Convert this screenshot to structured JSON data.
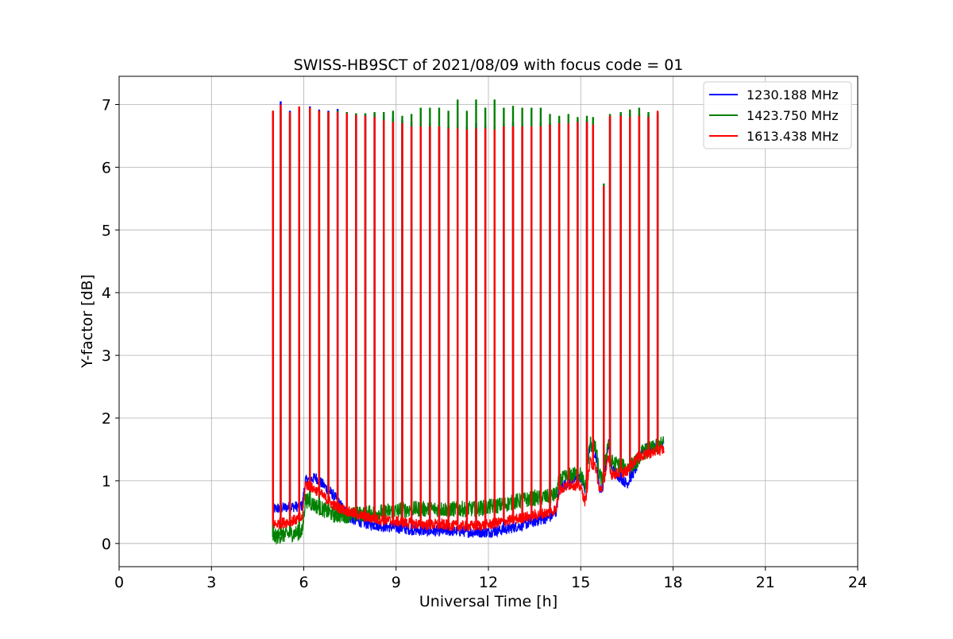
{
  "chart_data": {
    "type": "line",
    "title": "SWISS-HB9SCT of 2021/08/09 with focus code = 01",
    "xlabel": "Universal Time [h]",
    "ylabel": "Y-factor [dB]",
    "xlim": [
      0,
      24
    ],
    "ylim": [
      -0.37,
      7.45
    ],
    "xticks": [
      0,
      3,
      6,
      9,
      12,
      15,
      18,
      21,
      24
    ],
    "xtick_labels": [
      "0",
      "3",
      "6",
      "9",
      "12",
      "15",
      "18",
      "21",
      "24"
    ],
    "yticks": [
      0,
      1,
      2,
      3,
      4,
      5,
      6,
      7
    ],
    "ytick_labels": [
      "0",
      "1",
      "2",
      "3",
      "4",
      "5",
      "6",
      "7"
    ],
    "grid": true,
    "legend_position": "top-right",
    "series": [
      {
        "name": "1230.188 MHz",
        "color": "#0000ff",
        "baseline": [
          [
            5.0,
            0.55
          ],
          [
            5.5,
            0.58
          ],
          [
            5.95,
            0.6
          ],
          [
            6.05,
            1.0
          ],
          [
            6.4,
            1.05
          ],
          [
            7.0,
            0.75
          ],
          [
            7.5,
            0.4
          ],
          [
            8.0,
            0.32
          ],
          [
            8.5,
            0.28
          ],
          [
            9.0,
            0.25
          ],
          [
            9.5,
            0.22
          ],
          [
            10.0,
            0.2
          ],
          [
            10.5,
            0.2
          ],
          [
            11.0,
            0.2
          ],
          [
            11.5,
            0.18
          ],
          [
            12.0,
            0.18
          ],
          [
            12.5,
            0.22
          ],
          [
            13.0,
            0.28
          ],
          [
            13.5,
            0.35
          ],
          [
            14.0,
            0.42
          ],
          [
            14.2,
            0.5
          ],
          [
            14.3,
            0.9
          ],
          [
            14.7,
            1.0
          ],
          [
            15.0,
            1.05
          ],
          [
            15.15,
            0.85
          ],
          [
            15.3,
            1.6
          ],
          [
            15.5,
            1.4
          ],
          [
            15.6,
            0.9
          ],
          [
            15.7,
            0.85
          ],
          [
            15.9,
            1.6
          ],
          [
            16.0,
            1.2
          ],
          [
            16.5,
            0.95
          ],
          [
            16.8,
            1.2
          ],
          [
            17.0,
            1.5
          ],
          [
            17.5,
            1.55
          ],
          [
            17.7,
            1.6
          ]
        ],
        "spikes": [
          [
            5.0,
            6.9
          ],
          [
            5.25,
            7.05
          ],
          [
            5.55,
            6.9
          ],
          [
            5.85,
            6.95
          ],
          [
            6.2,
            6.97
          ],
          [
            6.5,
            6.92
          ],
          [
            6.8,
            6.9
          ],
          [
            7.1,
            6.93
          ],
          [
            7.4,
            6.88
          ],
          [
            7.7,
            6.85
          ],
          [
            8.0,
            6.85
          ],
          [
            8.3,
            6.85
          ],
          [
            8.6,
            6.82
          ],
          [
            8.9,
            6.8
          ],
          [
            9.2,
            6.75
          ],
          [
            9.5,
            6.72
          ],
          [
            9.8,
            6.68
          ],
          [
            10.1,
            6.7
          ],
          [
            10.4,
            6.65
          ],
          [
            10.7,
            6.65
          ],
          [
            11.0,
            6.68
          ],
          [
            11.3,
            6.65
          ],
          [
            11.6,
            6.7
          ],
          [
            11.9,
            6.68
          ],
          [
            12.2,
            6.65
          ],
          [
            12.5,
            6.7
          ],
          [
            12.8,
            6.72
          ],
          [
            13.1,
            6.68
          ],
          [
            13.4,
            6.65
          ],
          [
            13.7,
            6.72
          ],
          [
            14.0,
            6.7
          ],
          [
            14.3,
            6.75
          ],
          [
            14.6,
            6.72
          ],
          [
            14.9,
            6.75
          ],
          [
            15.2,
            6.75
          ],
          [
            15.4,
            6.7
          ],
          [
            15.75,
            5.72
          ],
          [
            15.95,
            6.8
          ],
          [
            16.3,
            6.85
          ],
          [
            16.6,
            6.85
          ],
          [
            16.9,
            6.85
          ],
          [
            17.2,
            6.82
          ],
          [
            17.5,
            6.85
          ]
        ]
      },
      {
        "name": "1423.750 MHz",
        "color": "#008000",
        "baseline": [
          [
            5.0,
            0.1
          ],
          [
            5.5,
            0.15
          ],
          [
            5.95,
            0.18
          ],
          [
            6.05,
            0.7
          ],
          [
            6.4,
            0.6
          ],
          [
            7.0,
            0.45
          ],
          [
            7.5,
            0.45
          ],
          [
            8.0,
            0.48
          ],
          [
            8.5,
            0.5
          ],
          [
            9.0,
            0.52
          ],
          [
            9.5,
            0.55
          ],
          [
            10.0,
            0.55
          ],
          [
            10.5,
            0.55
          ],
          [
            11.0,
            0.55
          ],
          [
            11.5,
            0.55
          ],
          [
            12.0,
            0.58
          ],
          [
            12.5,
            0.62
          ],
          [
            13.0,
            0.68
          ],
          [
            13.5,
            0.72
          ],
          [
            14.0,
            0.75
          ],
          [
            14.2,
            0.78
          ],
          [
            14.3,
            1.0
          ],
          [
            14.7,
            1.1
          ],
          [
            15.0,
            1.1
          ],
          [
            15.15,
            0.9
          ],
          [
            15.3,
            1.6
          ],
          [
            15.5,
            1.5
          ],
          [
            15.6,
            1.1
          ],
          [
            15.7,
            1.0
          ],
          [
            15.9,
            1.65
          ],
          [
            16.0,
            1.3
          ],
          [
            16.5,
            1.2
          ],
          [
            16.8,
            1.3
          ],
          [
            17.0,
            1.45
          ],
          [
            17.5,
            1.55
          ],
          [
            17.7,
            1.6
          ]
        ],
        "spikes": [
          [
            5.0,
            6.9
          ],
          [
            5.25,
            6.95
          ],
          [
            5.55,
            6.85
          ],
          [
            5.85,
            6.95
          ],
          [
            6.2,
            6.95
          ],
          [
            6.5,
            6.9
          ],
          [
            6.8,
            6.88
          ],
          [
            7.1,
            6.9
          ],
          [
            7.4,
            6.88
          ],
          [
            7.7,
            6.86
          ],
          [
            8.0,
            6.86
          ],
          [
            8.3,
            6.88
          ],
          [
            8.6,
            6.88
          ],
          [
            8.9,
            6.9
          ],
          [
            9.2,
            6.82
          ],
          [
            9.5,
            6.85
          ],
          [
            9.8,
            6.95
          ],
          [
            10.1,
            6.95
          ],
          [
            10.4,
            6.95
          ],
          [
            10.7,
            6.9
          ],
          [
            11.0,
            7.08
          ],
          [
            11.3,
            6.9
          ],
          [
            11.6,
            7.08
          ],
          [
            11.9,
            6.95
          ],
          [
            12.2,
            7.08
          ],
          [
            12.5,
            6.95
          ],
          [
            12.8,
            6.98
          ],
          [
            13.1,
            6.95
          ],
          [
            13.4,
            6.95
          ],
          [
            13.7,
            6.95
          ],
          [
            14.0,
            6.85
          ],
          [
            14.3,
            6.82
          ],
          [
            14.6,
            6.85
          ],
          [
            14.9,
            6.8
          ],
          [
            15.2,
            6.82
          ],
          [
            15.4,
            6.8
          ],
          [
            15.75,
            5.74
          ],
          [
            15.95,
            6.85
          ],
          [
            16.3,
            6.88
          ],
          [
            16.6,
            6.92
          ],
          [
            16.9,
            6.95
          ],
          [
            17.2,
            6.88
          ],
          [
            17.5,
            6.88
          ]
        ]
      },
      {
        "name": "1613.438 MHz",
        "color": "#ff0000",
        "baseline": [
          [
            5.0,
            0.3
          ],
          [
            5.5,
            0.35
          ],
          [
            5.95,
            0.4
          ],
          [
            6.05,
            0.95
          ],
          [
            6.4,
            0.85
          ],
          [
            7.0,
            0.6
          ],
          [
            7.5,
            0.5
          ],
          [
            8.0,
            0.42
          ],
          [
            8.5,
            0.38
          ],
          [
            9.0,
            0.35
          ],
          [
            9.5,
            0.32
          ],
          [
            10.0,
            0.3
          ],
          [
            10.5,
            0.3
          ],
          [
            11.0,
            0.28
          ],
          [
            11.5,
            0.28
          ],
          [
            12.0,
            0.3
          ],
          [
            12.5,
            0.35
          ],
          [
            13.0,
            0.4
          ],
          [
            13.5,
            0.45
          ],
          [
            14.0,
            0.5
          ],
          [
            14.2,
            0.55
          ],
          [
            14.3,
            0.85
          ],
          [
            14.7,
            0.95
          ],
          [
            15.0,
            0.9
          ],
          [
            15.15,
            0.65
          ],
          [
            15.3,
            1.3
          ],
          [
            15.5,
            1.2
          ],
          [
            15.6,
            0.85
          ],
          [
            15.7,
            0.9
          ],
          [
            15.9,
            1.35
          ],
          [
            16.0,
            1.1
          ],
          [
            16.5,
            1.15
          ],
          [
            16.8,
            1.35
          ],
          [
            17.0,
            1.4
          ],
          [
            17.5,
            1.48
          ],
          [
            17.7,
            1.5
          ]
        ],
        "spikes": [
          [
            5.0,
            6.9
          ],
          [
            5.25,
            7.0
          ],
          [
            5.55,
            6.88
          ],
          [
            5.85,
            6.97
          ],
          [
            6.2,
            6.95
          ],
          [
            6.5,
            6.9
          ],
          [
            6.8,
            6.88
          ],
          [
            7.1,
            6.88
          ],
          [
            7.4,
            6.86
          ],
          [
            7.7,
            6.83
          ],
          [
            8.0,
            6.82
          ],
          [
            8.3,
            6.8
          ],
          [
            8.6,
            6.75
          ],
          [
            8.9,
            6.72
          ],
          [
            9.2,
            6.7
          ],
          [
            9.5,
            6.65
          ],
          [
            9.8,
            6.65
          ],
          [
            10.1,
            6.65
          ],
          [
            10.4,
            6.65
          ],
          [
            10.7,
            6.62
          ],
          [
            11.0,
            6.62
          ],
          [
            11.3,
            6.6
          ],
          [
            11.6,
            6.62
          ],
          [
            11.9,
            6.62
          ],
          [
            12.2,
            6.6
          ],
          [
            12.5,
            6.65
          ],
          [
            12.8,
            6.65
          ],
          [
            13.1,
            6.65
          ],
          [
            13.4,
            6.65
          ],
          [
            13.7,
            6.65
          ],
          [
            14.0,
            6.68
          ],
          [
            14.3,
            6.7
          ],
          [
            14.6,
            6.7
          ],
          [
            14.9,
            6.72
          ],
          [
            15.2,
            6.72
          ],
          [
            15.4,
            6.68
          ],
          [
            15.75,
            5.7
          ],
          [
            15.95,
            6.82
          ],
          [
            16.3,
            6.82
          ],
          [
            16.6,
            6.8
          ],
          [
            16.9,
            6.82
          ],
          [
            17.2,
            6.8
          ],
          [
            17.5,
            6.9
          ]
        ]
      }
    ]
  }
}
